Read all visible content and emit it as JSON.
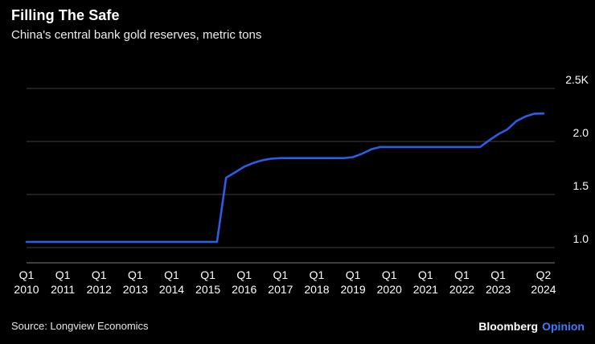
{
  "header": {
    "title": "Filling The Safe",
    "subtitle": "China's central bank gold reserves, metric tons"
  },
  "footer": {
    "source": "Source: Longview Economics",
    "brand": "Bloomberg",
    "brand_suffix": "Opinion",
    "brand_suffix_color": "#3e7bfa"
  },
  "chart_data": {
    "type": "line",
    "title": "Filling The Safe",
    "subtitle": "China's central bank gold reserves, metric tons",
    "unit": "thousand metric tons",
    "frequency": "quarterly",
    "start": "2010 Q1",
    "end": "2024 Q2",
    "values": [
      1.054,
      1.054,
      1.054,
      1.054,
      1.054,
      1.054,
      1.054,
      1.054,
      1.054,
      1.054,
      1.054,
      1.054,
      1.054,
      1.054,
      1.054,
      1.054,
      1.054,
      1.054,
      1.054,
      1.054,
      1.054,
      1.054,
      1.658,
      1.709,
      1.762,
      1.797,
      1.823,
      1.838,
      1.843,
      1.843,
      1.843,
      1.843,
      1.843,
      1.843,
      1.843,
      1.843,
      1.852,
      1.885,
      1.926,
      1.948,
      1.948,
      1.948,
      1.948,
      1.948,
      1.948,
      1.948,
      1.948,
      1.948,
      1.948,
      1.948,
      1.948,
      2.01,
      2.068,
      2.113,
      2.192,
      2.235,
      2.262,
      2.264
    ],
    "y_ticks": [
      {
        "value": 1.0,
        "label": "1.0"
      },
      {
        "value": 1.5,
        "label": "1.5"
      },
      {
        "value": 2.0,
        "label": "2.0"
      },
      {
        "value": 2.5,
        "label": "2.5K"
      }
    ],
    "x_ticks": [
      {
        "index": 0,
        "line1": "Q1",
        "line2": "2010"
      },
      {
        "index": 4,
        "line1": "Q1",
        "line2": "2011"
      },
      {
        "index": 8,
        "line1": "Q1",
        "line2": "2012"
      },
      {
        "index": 12,
        "line1": "Q1",
        "line2": "2013"
      },
      {
        "index": 16,
        "line1": "Q1",
        "line2": "2014"
      },
      {
        "index": 20,
        "line1": "Q1",
        "line2": "2015"
      },
      {
        "index": 24,
        "line1": "Q1",
        "line2": "2016"
      },
      {
        "index": 28,
        "line1": "Q1",
        "line2": "2017"
      },
      {
        "index": 32,
        "line1": "Q1",
        "line2": "2018"
      },
      {
        "index": 36,
        "line1": "Q1",
        "line2": "2019"
      },
      {
        "index": 40,
        "line1": "Q1",
        "line2": "2020"
      },
      {
        "index": 44,
        "line1": "Q1",
        "line2": "2021"
      },
      {
        "index": 48,
        "line1": "Q1",
        "line2": "2022"
      },
      {
        "index": 52,
        "line1": "Q1",
        "line2": "2023"
      },
      {
        "index": 57,
        "line1": "Q2",
        "line2": "2024"
      }
    ],
    "ylim": [
      0.85,
      2.6
    ],
    "grid": true,
    "legend": false,
    "line_color": "#2d5ce5",
    "grid_color": "#3e3e3e",
    "axis_color": "#7d7d7d",
    "tick_label_color": "#ffffff",
    "background_color": "#000000"
  }
}
